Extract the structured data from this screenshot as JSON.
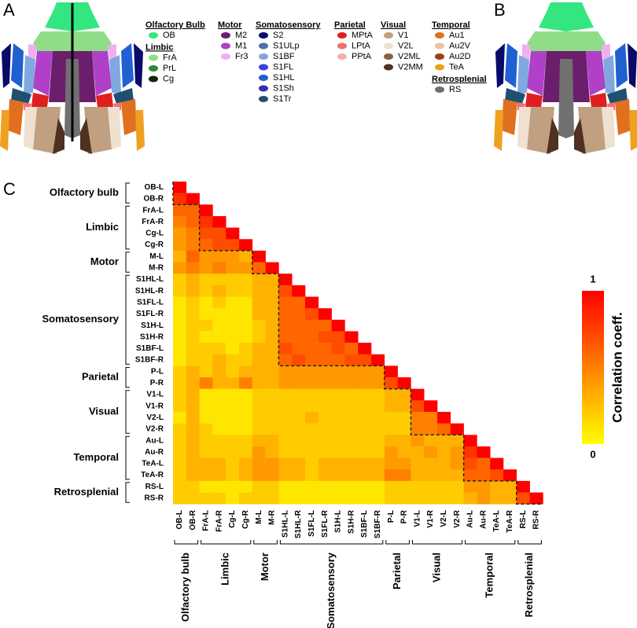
{
  "panels": {
    "a": "A",
    "b": "B",
    "c": "C"
  },
  "atlas_legend": [
    {
      "title": "Olfactory Bulb",
      "items": [
        {
          "label": "OB",
          "color": "#33e680"
        }
      ]
    },
    {
      "title": "Limbic",
      "items": [
        {
          "label": "FrA",
          "color": "#90dd88"
        },
        {
          "label": "PrL",
          "color": "#2a8a3a"
        },
        {
          "label": "Cg",
          "color": "#0a2a0a"
        }
      ]
    },
    {
      "title": "Motor",
      "items": [
        {
          "label": "M2",
          "color": "#6b1e6b"
        },
        {
          "label": "M1",
          "color": "#b040c8"
        },
        {
          "label": "Fr3",
          "color": "#f0b0f0"
        }
      ]
    },
    {
      "title": "Somatosensory",
      "items": [
        {
          "label": "S2",
          "color": "#0a0a6b"
        },
        {
          "label": "S1ULp",
          "color": "#4a70b0"
        },
        {
          "label": "S1BF",
          "color": "#80a8e0"
        },
        {
          "label": "S1FL",
          "color": "#4040e0"
        },
        {
          "label": "S1HL",
          "color": "#2060d0"
        },
        {
          "label": "S1Sh",
          "color": "#3030b0"
        },
        {
          "label": "S1Tr",
          "color": "#205070"
        }
      ]
    },
    {
      "title": "Parietal",
      "items": [
        {
          "label": "MPtA",
          "color": "#e02020"
        },
        {
          "label": "LPtA",
          "color": "#f07070"
        },
        {
          "label": "PPtA",
          "color": "#f0b0b0"
        }
      ]
    },
    {
      "title": "Visual",
      "items": [
        {
          "label": "V1",
          "color": "#c0a080"
        },
        {
          "label": "V2L",
          "color": "#f0e0d0"
        },
        {
          "label": "V2ML",
          "color": "#8a6040"
        },
        {
          "label": "V2MM",
          "color": "#503020"
        }
      ]
    },
    {
      "title": "Temporal",
      "items": [
        {
          "label": "Au1",
          "color": "#e07020"
        },
        {
          "label": "Au2V",
          "color": "#f0c0a0"
        },
        {
          "label": "Au2D",
          "color": "#a04010"
        },
        {
          "label": "TeA",
          "color": "#f0a020"
        }
      ]
    },
    {
      "title": "Retrosplenial",
      "items": [
        {
          "label": "RS",
          "color": "#707070"
        }
      ]
    }
  ],
  "chart_data": {
    "type": "heatmap",
    "groups": [
      {
        "name": "Olfactory bulb",
        "categories": [
          "OB-L",
          "OB-R"
        ]
      },
      {
        "name": "Limbic",
        "categories": [
          "FrA-L",
          "FrA-R",
          "Cg-L",
          "Cg-R"
        ]
      },
      {
        "name": "Motor",
        "categories": [
          "M-L",
          "M-R"
        ]
      },
      {
        "name": "Somatosensory",
        "categories": [
          "S1HL-L",
          "S1HL-R",
          "S1FL-L",
          "S1FL-R",
          "S1H-L",
          "S1H-R",
          "S1BF-L",
          "S1BF-R"
        ]
      },
      {
        "name": "Parietal",
        "categories": [
          "P-L",
          "P-R"
        ]
      },
      {
        "name": "Visual",
        "categories": [
          "V1-L",
          "V1-R",
          "V2-L",
          "V2-R"
        ]
      },
      {
        "name": "Temporal",
        "categories": [
          "Au-L",
          "Au-R",
          "TeA-L",
          "TeA-R"
        ]
      },
      {
        "name": "Retrosplenial",
        "categories": [
          "RS-L",
          "RS-R"
        ]
      }
    ],
    "values": [
      [
        1
      ],
      [
        0.8,
        1
      ],
      [
        0.6,
        0.6,
        1
      ],
      [
        0.5,
        0.6,
        0.8,
        1
      ],
      [
        0.4,
        0.5,
        0.7,
        0.7,
        1
      ],
      [
        0.4,
        0.5,
        0.6,
        0.7,
        0.7,
        1
      ],
      [
        0.3,
        0.6,
        0.4,
        0.4,
        0.4,
        0.3,
        1
      ],
      [
        0.4,
        0.5,
        0.4,
        0.5,
        0.4,
        0.4,
        0.6,
        1
      ],
      [
        0.2,
        0.3,
        0.2,
        0.2,
        0.2,
        0.2,
        0.3,
        0.3,
        1
      ],
      [
        0.2,
        0.3,
        0.2,
        0.3,
        0.2,
        0.2,
        0.3,
        0.3,
        0.7,
        1
      ],
      [
        0.1,
        0.2,
        0.1,
        0.2,
        0.1,
        0.1,
        0.3,
        0.3,
        0.6,
        0.6,
        1
      ],
      [
        0.1,
        0.2,
        0.1,
        0.1,
        0.1,
        0.1,
        0.3,
        0.3,
        0.6,
        0.6,
        0.7,
        1
      ],
      [
        0.1,
        0.2,
        0.2,
        0.1,
        0.1,
        0.1,
        0.2,
        0.3,
        0.6,
        0.6,
        0.6,
        0.6,
        1
      ],
      [
        0.1,
        0.2,
        0.1,
        0.1,
        0.1,
        0.1,
        0.2,
        0.3,
        0.6,
        0.6,
        0.6,
        0.7,
        0.7,
        1
      ],
      [
        0.1,
        0.2,
        0.2,
        0.2,
        0.1,
        0.2,
        0.3,
        0.3,
        0.7,
        0.6,
        0.6,
        0.6,
        0.7,
        0.6,
        1
      ],
      [
        0.1,
        0.2,
        0.2,
        0.3,
        0.2,
        0.2,
        0.3,
        0.3,
        0.6,
        0.7,
        0.6,
        0.6,
        0.6,
        0.7,
        0.7,
        1
      ],
      [
        0.2,
        0.3,
        0.2,
        0.3,
        0.2,
        0.3,
        0.3,
        0.3,
        0.4,
        0.4,
        0.4,
        0.4,
        0.4,
        0.4,
        0.4,
        0.4,
        1
      ],
      [
        0.2,
        0.3,
        0.5,
        0.3,
        0.3,
        0.5,
        0.3,
        0.3,
        0.4,
        0.4,
        0.4,
        0.4,
        0.4,
        0.4,
        0.4,
        0.4,
        0.7,
        1
      ],
      [
        0.2,
        0.3,
        0.1,
        0.1,
        0.1,
        0.1,
        0.2,
        0.2,
        0.2,
        0.2,
        0.2,
        0.2,
        0.2,
        0.2,
        0.2,
        0.2,
        0.3,
        0.3,
        1
      ],
      [
        0.2,
        0.3,
        0.1,
        0.1,
        0.1,
        0.1,
        0.2,
        0.2,
        0.2,
        0.2,
        0.2,
        0.2,
        0.2,
        0.2,
        0.2,
        0.2,
        0.3,
        0.3,
        0.7,
        1
      ],
      [
        0.1,
        0.3,
        0.1,
        0.1,
        0.1,
        0.1,
        0.2,
        0.2,
        0.2,
        0.2,
        0.3,
        0.2,
        0.2,
        0.2,
        0.2,
        0.2,
        0.2,
        0.2,
        0.5,
        0.5,
        1
      ],
      [
        0.2,
        0.3,
        0.2,
        0.1,
        0.1,
        0.1,
        0.2,
        0.2,
        0.2,
        0.2,
        0.2,
        0.2,
        0.2,
        0.2,
        0.2,
        0.2,
        0.2,
        0.2,
        0.5,
        0.5,
        0.6,
        1
      ],
      [
        0.2,
        0.3,
        0.2,
        0.2,
        0.2,
        0.2,
        0.3,
        0.3,
        0.2,
        0.2,
        0.2,
        0.2,
        0.2,
        0.2,
        0.2,
        0.2,
        0.3,
        0.3,
        0.4,
        0.3,
        0.3,
        0.3,
        1
      ],
      [
        0.2,
        0.3,
        0.2,
        0.2,
        0.2,
        0.2,
        0.4,
        0.3,
        0.2,
        0.2,
        0.2,
        0.2,
        0.2,
        0.2,
        0.2,
        0.2,
        0.4,
        0.3,
        0.3,
        0.4,
        0.3,
        0.4,
        0.8,
        1
      ],
      [
        0.2,
        0.3,
        0.3,
        0.3,
        0.2,
        0.3,
        0.4,
        0.4,
        0.3,
        0.3,
        0.2,
        0.3,
        0.3,
        0.3,
        0.3,
        0.3,
        0.4,
        0.4,
        0.3,
        0.3,
        0.3,
        0.4,
        0.7,
        0.6,
        1
      ],
      [
        0.2,
        0.3,
        0.3,
        0.3,
        0.2,
        0.3,
        0.4,
        0.4,
        0.3,
        0.3,
        0.2,
        0.3,
        0.3,
        0.3,
        0.3,
        0.3,
        0.5,
        0.5,
        0.3,
        0.3,
        0.3,
        0.3,
        0.6,
        0.6,
        0.7,
        1
      ],
      [
        0.2,
        0.2,
        0.1,
        0.1,
        0.1,
        0.1,
        0.2,
        0.2,
        0.1,
        0.1,
        0.1,
        0.1,
        0.1,
        0.1,
        0.1,
        0.1,
        0.2,
        0.2,
        0.2,
        0.2,
        0.2,
        0.2,
        0.4,
        0.4,
        0.3,
        0.3,
        1
      ],
      [
        0.2,
        0.2,
        0.2,
        0.2,
        0.1,
        0.2,
        0.2,
        0.2,
        0.1,
        0.1,
        0.1,
        0.1,
        0.1,
        0.1,
        0.1,
        0.1,
        0.2,
        0.2,
        0.2,
        0.2,
        0.2,
        0.2,
        0.3,
        0.4,
        0.3,
        0.3,
        0.7,
        1
      ]
    ],
    "zlim": [
      0,
      1
    ],
    "zticks": [
      0,
      1
    ],
    "zcolors": [
      "#ffff00",
      "#ff0000"
    ],
    "colorbar_label": "Correlation coeff."
  }
}
